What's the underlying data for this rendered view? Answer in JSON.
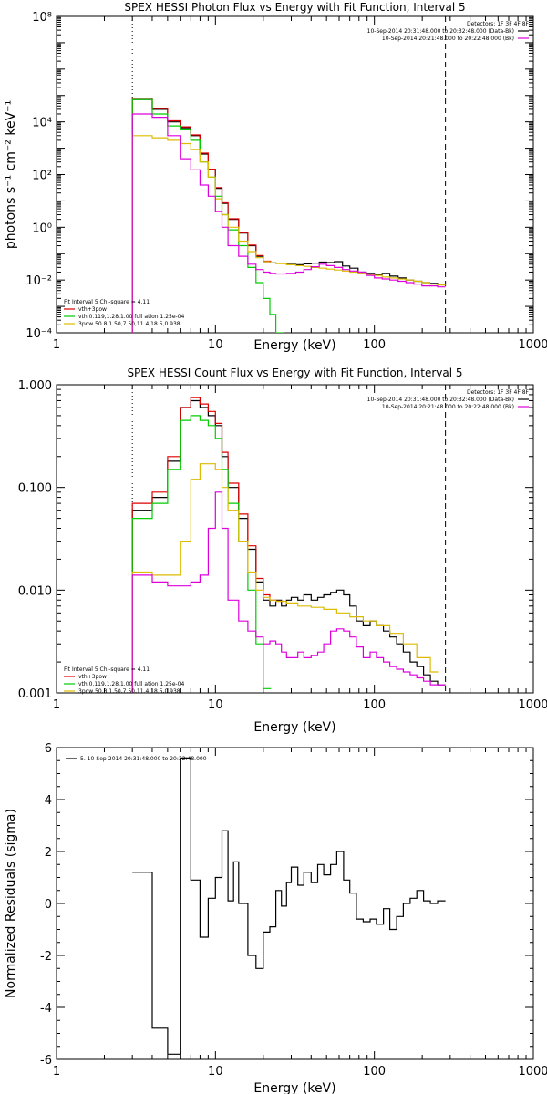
{
  "chart_data": [
    {
      "type": "line",
      "title": "SPEX HESSI Photon Flux vs Energy with Fit Function, Interval 5",
      "xlabel": "Energy (keV)",
      "ylabel": "photons s⁻¹ cm⁻² keV⁻¹",
      "xscale": "log",
      "yscale": "log",
      "xlim": [
        1,
        1000
      ],
      "ylim": [
        0.0001,
        100000000
      ],
      "xticks": [
        1,
        10,
        100,
        1000
      ],
      "xtick_labels": [
        "1",
        "10",
        "100",
        "1000"
      ],
      "yticks": [
        0.0001,
        0.01,
        1,
        100,
        10000,
        100000000
      ],
      "ytick_labels": [
        "10⁻⁴",
        "10⁻²",
        "10⁰",
        "10²",
        "10⁴",
        "10⁸"
      ],
      "vlines": [
        {
          "x": 3.0,
          "style": "dotted"
        },
        {
          "x": 280,
          "style": "dashed"
        }
      ],
      "legend_top": [
        "Detectors: 1F 3F 4F 8F",
        "10-Sep-2014 20:31:48.000 to 20:32:48.000 (Data-Bk)",
        "10-Sep-2014 20:21:48.000 to 20:22:48.000 (Bk)"
      ],
      "legend_bottom": [
        "Fit Interval 5   Chi-square = 4.11",
        "vth+3pow",
        "vth 0.119,1.28,1.00  full ation 1.25e-04",
        "3pow 50.8,1.50,7.50,11.4,18.5,0.938"
      ],
      "series": [
        {
          "name": "Data-Bk",
          "color": "#000000",
          "step": true,
          "x": [
            3.0,
            4.0,
            5.0,
            6.0,
            7.0,
            8.0,
            9.0,
            10.0,
            11.0,
            12.0,
            14.0,
            16.0,
            18.0,
            20.0,
            22.0,
            24.0,
            28.0,
            32.0,
            36.0,
            40.0,
            45.0,
            50.0,
            56.0,
            63.0,
            70.0,
            79.0,
            89.0,
            100.0,
            112.0,
            125.0,
            141.0,
            158.0,
            177.0,
            199.0,
            223.0,
            250.0
          ],
          "y": [
            70000,
            30000,
            10000,
            6000,
            3000,
            600,
            150,
            30,
            8,
            2,
            0.6,
            0.2,
            0.08,
            0.05,
            0.045,
            0.043,
            0.04,
            0.038,
            0.041,
            0.044,
            0.048,
            0.046,
            0.05,
            0.034,
            0.028,
            0.02,
            0.018,
            0.016,
            0.018,
            0.014,
            0.012,
            0.01,
            0.009,
            0.008,
            0.0075,
            0.007
          ]
        },
        {
          "name": "vth+3pow",
          "color": "#dd0000",
          "step": true,
          "x": [
            3.0,
            4.0,
            5.0,
            6.0,
            7.0,
            8.0,
            9.0,
            10.0,
            11.0,
            12.0,
            14.0,
            16.0,
            18.0,
            20.0
          ],
          "y": [
            80000,
            32000,
            11000,
            6500,
            3200,
            650,
            160,
            32,
            8.5,
            2.1,
            0.62,
            0.21,
            0.085,
            0.052
          ]
        },
        {
          "name": "vth",
          "color": "#00cc00",
          "step": true,
          "x": [
            3.0,
            4.0,
            5.0,
            6.0,
            7.0,
            8.0,
            9.0,
            10.0,
            11.0,
            12.0,
            14.0,
            16.0,
            18.0,
            20.0,
            22.0,
            24.0
          ],
          "y": [
            70000,
            20000,
            7000,
            5000,
            2000,
            300,
            80,
            15,
            3,
            0.8,
            0.2,
            0.03,
            0.008,
            0.002,
            0.0005,
            0.0001
          ]
        },
        {
          "name": "3pow",
          "color": "#ddbb00",
          "step": true,
          "x": [
            3.0,
            4.0,
            5.0,
            6.0,
            7.0,
            8.0,
            9.0,
            10.0,
            11.0,
            12.0,
            14.0,
            16.0,
            18.0,
            20.0,
            22.0,
            24.0,
            28.0,
            32.0,
            36.0,
            40.0,
            45.0,
            50.0,
            56.0,
            63.0,
            70.0,
            79.0,
            89.0,
            100.0,
            112.0,
            125.0,
            141.0,
            158.0,
            177.0,
            199.0,
            223.0,
            250.0
          ],
          "y": [
            3000,
            2500,
            2000,
            1500,
            900,
            300,
            80,
            12,
            3,
            1.0,
            0.3,
            0.12,
            0.07,
            0.05,
            0.045,
            0.042,
            0.038,
            0.035,
            0.033,
            0.03,
            0.028,
            0.026,
            0.024,
            0.022,
            0.02,
            0.018,
            0.016,
            0.015,
            0.013,
            0.012,
            0.011,
            0.01,
            0.009,
            0.008,
            0.007,
            0.0065
          ]
        },
        {
          "name": "Bk",
          "color": "#dd00dd",
          "step": true,
          "x": [
            3.0,
            4.0,
            5.0,
            6.0,
            7.0,
            8.0,
            9.0,
            10.0,
            11.0,
            12.0,
            14.0,
            16.0,
            18.0,
            20.0,
            22.0,
            24.0,
            28.0,
            32.0,
            36.0,
            40.0,
            45.0,
            50.0,
            56.0,
            63.0,
            70.0,
            79.0,
            89.0,
            100.0,
            112.0,
            125.0,
            141.0,
            158.0,
            177.0,
            199.0,
            223.0,
            250.0
          ],
          "y": [
            20000,
            15000,
            3000,
            400,
            150,
            40,
            15,
            4,
            1.0,
            0.2,
            0.08,
            0.04,
            0.025,
            0.02,
            0.018,
            0.017,
            0.018,
            0.02,
            0.025,
            0.032,
            0.04,
            0.035,
            0.03,
            0.025,
            0.022,
            0.02,
            0.015,
            0.012,
            0.011,
            0.01,
            0.009,
            0.008,
            0.007,
            0.006,
            0.006,
            0.0055
          ]
        }
      ]
    },
    {
      "type": "line",
      "title": "SPEX HESSI Count Flux vs Energy with Fit Function, Interval 5",
      "xlabel": "Energy (keV)",
      "ylabel": "",
      "xscale": "log",
      "yscale": "log",
      "xlim": [
        1,
        1000
      ],
      "ylim": [
        0.001,
        1.0
      ],
      "xticks": [
        1,
        10,
        100,
        1000
      ],
      "xtick_labels": [
        "1",
        "10",
        "100",
        "1000"
      ],
      "yticks": [
        0.001,
        0.01,
        0.1,
        1.0
      ],
      "ytick_labels": [
        "0.001",
        "0.010",
        "0.100",
        "1.000"
      ],
      "vlines": [
        {
          "x": 3.0,
          "style": "dotted"
        },
        {
          "x": 280,
          "style": "dashed"
        }
      ],
      "legend_top": [
        "Detectors: 1F 3F 4F 8F",
        "10-Sep-2014 20:31:48.000 to 20:32:48.000 (Data-Bk)",
        "10-Sep-2014 20:21:48.000 to 20:22:48.000 (Bk)"
      ],
      "legend_bottom": [
        "Fit Interval 5   Chi-square = 4.11",
        "vth+3pow",
        "vth 0.119,1.28,1.00  full ation 1.25e-04",
        "3pow 50.8,1.50,7.50,11.4,18.5,0.938"
      ],
      "series": [
        {
          "name": "Data-Bk",
          "color": "#000000",
          "step": true,
          "x": [
            3.0,
            4.0,
            5.0,
            6.0,
            7.0,
            8.0,
            9.0,
            10.0,
            11.0,
            12.0,
            14.0,
            16.0,
            18.0,
            20.0,
            22.0,
            24.0,
            26.0,
            28.0,
            30.0,
            33.0,
            36.0,
            40.0,
            44.0,
            48.0,
            53.0,
            58.0,
            64.0,
            70.0,
            77.0,
            85.0,
            94.0,
            103.0,
            114.0,
            125.0,
            138.0,
            152.0,
            168.0,
            185.0,
            204.0,
            225.0,
            250.0
          ],
          "y": [
            0.06,
            0.08,
            0.18,
            0.6,
            0.7,
            0.6,
            0.5,
            0.4,
            0.2,
            0.1,
            0.05,
            0.025,
            0.012,
            0.008,
            0.007,
            0.008,
            0.007,
            0.008,
            0.0085,
            0.008,
            0.009,
            0.008,
            0.0085,
            0.009,
            0.0095,
            0.01,
            0.009,
            0.007,
            0.005,
            0.0045,
            0.005,
            0.0045,
            0.004,
            0.0035,
            0.003,
            0.0025,
            0.002,
            0.0018,
            0.0015,
            0.0013,
            0.0012
          ]
        },
        {
          "name": "vth+3pow",
          "color": "#dd0000",
          "step": true,
          "x": [
            3.0,
            4.0,
            5.0,
            6.0,
            7.0,
            8.0,
            9.0,
            10.0,
            11.0,
            12.0,
            14.0,
            16.0,
            18.0,
            20.0,
            22.0,
            24.0
          ],
          "y": [
            0.07,
            0.09,
            0.2,
            0.6,
            0.75,
            0.65,
            0.55,
            0.42,
            0.22,
            0.11,
            0.055,
            0.027,
            0.013,
            0.009,
            0.008,
            0.0078
          ]
        },
        {
          "name": "vth",
          "color": "#00cc00",
          "step": true,
          "x": [
            3.0,
            4.0,
            5.0,
            6.0,
            7.0,
            8.0,
            9.0,
            10.0,
            11.0,
            12.0,
            14.0,
            16.0,
            18.0,
            20.0
          ],
          "y": [
            0.05,
            0.07,
            0.15,
            0.45,
            0.5,
            0.45,
            0.4,
            0.3,
            0.15,
            0.07,
            0.03,
            0.01,
            0.003,
            0.0011
          ]
        },
        {
          "name": "3pow",
          "color": "#ddbb00",
          "step": true,
          "x": [
            3.0,
            4.0,
            5.0,
            6.0,
            7.0,
            8.0,
            9.0,
            10.0,
            11.0,
            12.0,
            14.0,
            16.0,
            18.0,
            20.0,
            22.0,
            24.0,
            28.0,
            33.0,
            40.0,
            48.0,
            58.0,
            70.0,
            85.0,
            103.0,
            125.0,
            152.0,
            185.0,
            225.0
          ],
          "y": [
            0.015,
            0.014,
            0.014,
            0.03,
            0.12,
            0.17,
            0.17,
            0.15,
            0.1,
            0.06,
            0.03,
            0.015,
            0.01,
            0.0085,
            0.008,
            0.0078,
            0.0075,
            0.007,
            0.0068,
            0.0065,
            0.006,
            0.0055,
            0.005,
            0.0045,
            0.0038,
            0.003,
            0.0022,
            0.0016
          ]
        },
        {
          "name": "Bk",
          "color": "#dd00dd",
          "step": true,
          "x": [
            3.0,
            4.0,
            5.0,
            6.0,
            7.0,
            8.0,
            9.0,
            10.0,
            11.0,
            12.0,
            14.0,
            16.0,
            18.0,
            20.0,
            22.0,
            24.0,
            26.0,
            28.0,
            30.0,
            33.0,
            36.0,
            40.0,
            44.0,
            48.0,
            53.0,
            58.0,
            64.0,
            70.0,
            77.0,
            85.0,
            94.0,
            103.0,
            114.0,
            125.0,
            138.0,
            152.0,
            168.0,
            185.0,
            204.0,
            225.0,
            250.0
          ],
          "y": [
            0.014,
            0.012,
            0.011,
            0.011,
            0.012,
            0.014,
            0.04,
            0.09,
            0.04,
            0.008,
            0.005,
            0.004,
            0.0035,
            0.003,
            0.0032,
            0.003,
            0.0025,
            0.0022,
            0.0022,
            0.0025,
            0.0022,
            0.0023,
            0.0025,
            0.003,
            0.004,
            0.0042,
            0.004,
            0.0035,
            0.0028,
            0.0022,
            0.0025,
            0.0022,
            0.002,
            0.0018,
            0.0017,
            0.0016,
            0.0015,
            0.0014,
            0.0013,
            0.0012,
            0.0012
          ]
        }
      ]
    },
    {
      "type": "line",
      "title": "",
      "xlabel": "Energy (keV)",
      "ylabel": "Normalized Residuals (sigma)",
      "xscale": "log",
      "yscale": "linear",
      "xlim": [
        1,
        1000
      ],
      "ylim": [
        -6,
        6
      ],
      "xticks": [
        1,
        10,
        100,
        1000
      ],
      "xtick_labels": [
        "1",
        "10",
        "100",
        "1000"
      ],
      "yticks": [
        -6,
        -4,
        -2,
        0,
        2,
        4,
        6
      ],
      "ytick_labels": [
        "-6",
        "-4",
        "-2",
        "0",
        "2",
        "4",
        "6"
      ],
      "legend": [
        "5. 10-Sep-2014 20:31:48.000 to 20:32:48.000"
      ],
      "series": [
        {
          "name": "5. 10-Sep-2014 20:31:48.000 to 20:32:48.000",
          "color": "#000000",
          "step": true,
          "x": [
            3.0,
            4.0,
            5.0,
            6.0,
            7.0,
            8.0,
            9.0,
            10.0,
            11.0,
            12.0,
            13.0,
            14.0,
            16.0,
            18.0,
            20.0,
            22.0,
            24.0,
            26.0,
            28.0,
            30.0,
            33.0,
            36.0,
            40.0,
            44.0,
            48.0,
            53.0,
            58.0,
            64.0,
            70.0,
            77.0,
            85.0,
            94.0,
            103.0,
            114.0,
            125.0,
            138.0,
            152.0,
            168.0,
            185.0,
            204.0,
            225.0,
            250.0
          ],
          "y": [
            1.2,
            -4.8,
            -5.8,
            5.6,
            0.9,
            -1.3,
            0.2,
            1.0,
            2.8,
            0.1,
            1.6,
            0.0,
            -2.0,
            -2.5,
            -1.1,
            -0.9,
            0.5,
            -0.1,
            0.8,
            1.4,
            0.7,
            1.2,
            0.8,
            1.5,
            1.1,
            1.5,
            2.0,
            0.9,
            0.4,
            -0.6,
            -0.7,
            -0.6,
            -0.8,
            -0.2,
            -1.0,
            -0.5,
            0.0,
            0.2,
            0.5,
            0.1,
            0.0,
            0.1
          ]
        }
      ]
    }
  ]
}
